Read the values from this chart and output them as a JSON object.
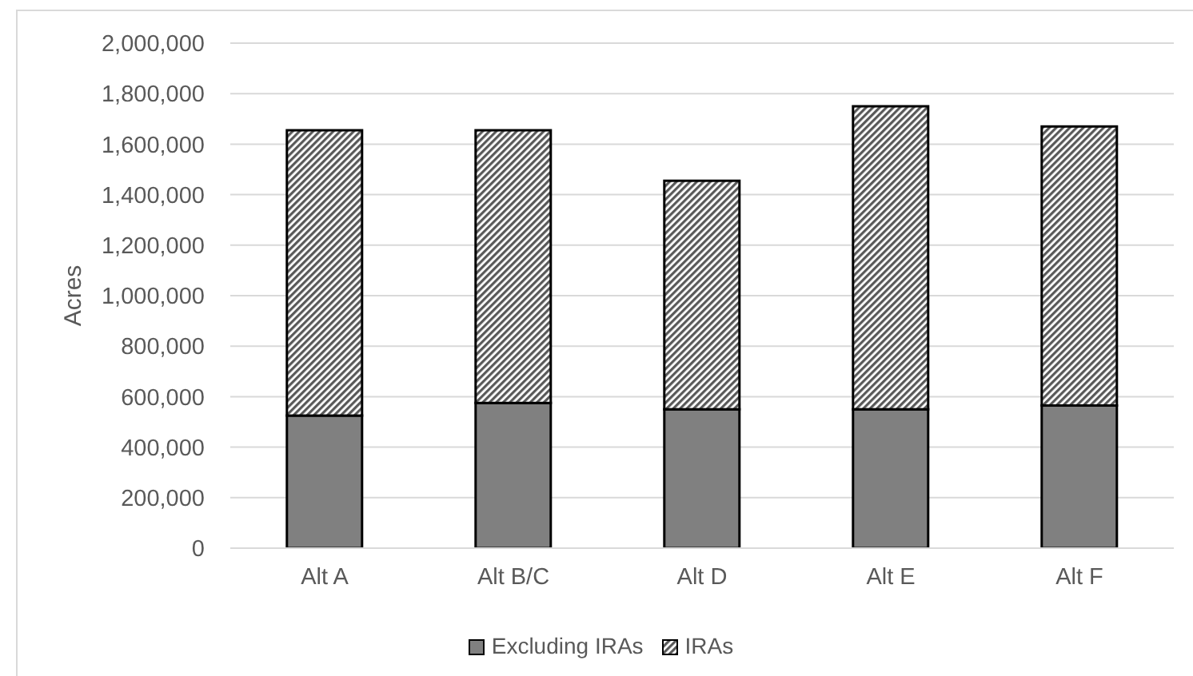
{
  "chart_data": {
    "type": "bar",
    "stacked": true,
    "ylabel": "Acres",
    "categories": [
      "Alt A",
      "Alt B/C",
      "Alt D",
      "Alt E",
      "Alt F"
    ],
    "series": [
      {
        "name": "Excluding IRAs",
        "color": "#808080",
        "values": [
          525000,
          575000,
          550000,
          550000,
          565000
        ]
      },
      {
        "name": "IRAs",
        "color": "#595959",
        "values": [
          1130000,
          1080000,
          905000,
          1200000,
          1105000
        ]
      }
    ],
    "ylim": [
      0,
      2000000
    ],
    "yticks": [
      {
        "value": 0,
        "label": "0"
      },
      {
        "value": 200000,
        "label": "200,000"
      },
      {
        "value": 400000,
        "label": "400,000"
      },
      {
        "value": 600000,
        "label": "600,000"
      },
      {
        "value": 800000,
        "label": "800,000"
      },
      {
        "value": 1000000,
        "label": "1,000,000"
      },
      {
        "value": 1200000,
        "label": "1,200,000"
      },
      {
        "value": 1400000,
        "label": "1,400,000"
      },
      {
        "value": 1600000,
        "label": "1,600,000"
      },
      {
        "value": 1800000,
        "label": "1,800,000"
      },
      {
        "value": 2000000,
        "label": "2,000,000"
      }
    ],
    "grid": "y",
    "legend": "bottom"
  }
}
